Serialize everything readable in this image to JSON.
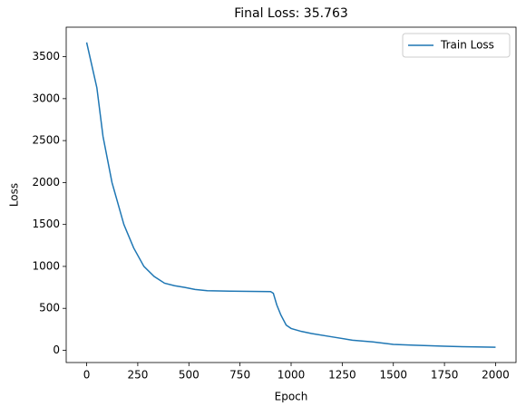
{
  "chart_data": {
    "type": "line",
    "title": "Final Loss: 35.763",
    "xlabel": "Epoch",
    "ylabel": "Loss",
    "x": [
      0,
      25,
      50,
      80,
      124,
      182,
      230,
      280,
      330,
      381,
      430,
      480,
      530,
      590,
      700,
      800,
      900,
      913,
      930,
      950,
      976,
      1000,
      1050,
      1100,
      1200,
      1300,
      1400,
      1500,
      1600,
      1750,
      1900,
      2000
    ],
    "series": [
      {
        "name": "Train Loss",
        "color": "#1f77b4",
        "values": [
          3670,
          3400,
          3130,
          2550,
          2000,
          1500,
          1220,
          1000,
          880,
          800,
          770,
          750,
          725,
          710,
          705,
          702,
          700,
          680,
          540,
          420,
          300,
          260,
          225,
          200,
          160,
          120,
          100,
          70,
          60,
          48,
          40,
          35.763
        ]
      }
    ],
    "xlim": [
      -100,
      2100
    ],
    "ylim": [
      -146,
      3852
    ],
    "xticks": [
      0,
      250,
      500,
      750,
      1000,
      1250,
      1500,
      1750,
      2000
    ],
    "yticks": [
      0,
      500,
      1000,
      1500,
      2000,
      2500,
      3000,
      3500
    ],
    "legend": "upper right"
  }
}
